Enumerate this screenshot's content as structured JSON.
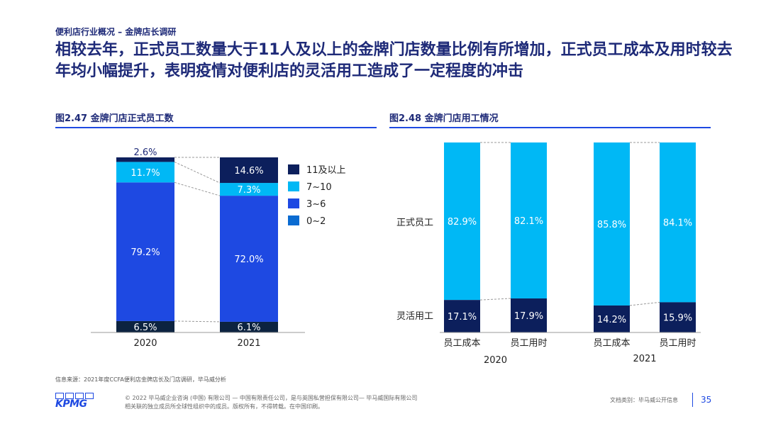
{
  "header": {
    "breadcrumb": "便利店行业概况 – 金牌店长调研",
    "headline": "相较去年，正式员工数量大于11人及以上的金牌门店数量比例有所增加，正式员工成本及用时较去年均小幅提升，表明疫情对便利店的灵活用工造成了一定程度的冲击"
  },
  "footer": {
    "source": "信息来源：2021年度CCFA便利店金牌店长及门店调研，毕马威分析",
    "logo_text": "KPMG",
    "copyright_line1": "© 2022 毕马威企业咨询 (中国) 有限公司 — 中国有限责任公司，是与英国私营担保有限公司— 毕马威国际有限公司",
    "copyright_line2": "相关联的独立成员所全球性组织中的成员。版权所有，不得转载。在中国印刷。",
    "doc_type": "文档类别：毕马威公开信息",
    "page_number": "35"
  },
  "colors": {
    "navy": "#0c1f5c",
    "light_blue": "#00b8f5",
    "royal_blue": "#1e49e2",
    "mid_blue": "#0a6bd1",
    "dark_navy": "#0c2340",
    "title": "#1e2a78"
  },
  "chart_data": [
    {
      "type": "bar",
      "stacked": true,
      "title": "图2.47 金牌门店正式员工数",
      "categories": [
        "2020",
        "2021"
      ],
      "series": [
        {
          "name": "0~2",
          "color": "#0a6bd1",
          "values": [
            0,
            0
          ],
          "labels": [
            "",
            ""
          ]
        },
        {
          "name": "3~6",
          "color": "#1e49e2",
          "values": [
            6.5,
            6.1
          ],
          "labels": [
            "6.5%",
            "6.1%"
          ],
          "bottom_color": "#0c2340"
        },
        {
          "name": "3~6",
          "color": "#1e49e2",
          "values": [
            79.2,
            72.0
          ],
          "labels": [
            "79.2%",
            "72.0%"
          ]
        },
        {
          "name": "7~10",
          "color": "#00b8f5",
          "values": [
            11.7,
            7.3
          ],
          "labels": [
            "11.7%",
            "7.3%"
          ]
        },
        {
          "name": "11及以上",
          "color": "#0c1f5c",
          "values": [
            2.6,
            14.6
          ],
          "labels": [
            "2.6%",
            "14.6%"
          ]
        }
      ],
      "legend": [
        {
          "name": "11及以上",
          "color": "#0c1f5c"
        },
        {
          "name": "7~10",
          "color": "#00b8f5"
        },
        {
          "name": "3~6",
          "color": "#1e49e2"
        },
        {
          "name": "0~2",
          "color": "#0a6bd1"
        }
      ],
      "legend_position": "right",
      "ylim": [
        0,
        100
      ]
    },
    {
      "type": "bar",
      "stacked": true,
      "title": "图2.48 金牌门店用工情况",
      "groups": [
        "2020",
        "2021"
      ],
      "categories": [
        "员工成本",
        "员工用时",
        "员工成本",
        "员工用时"
      ],
      "row_labels": [
        "正式员工",
        "灵活用工"
      ],
      "series": [
        {
          "name": "灵活用工",
          "color": "#0c1f5c",
          "values": [
            17.1,
            17.9,
            14.2,
            15.9
          ],
          "labels": [
            "17.1%",
            "17.9%",
            "14.2%",
            "15.9%"
          ]
        },
        {
          "name": "正式员工",
          "color": "#00b8f5",
          "values": [
            82.9,
            82.1,
            85.8,
            84.1
          ],
          "labels": [
            "82.9%",
            "82.1%",
            "85.8%",
            "84.1%"
          ]
        }
      ],
      "ylim": [
        0,
        100
      ]
    }
  ]
}
